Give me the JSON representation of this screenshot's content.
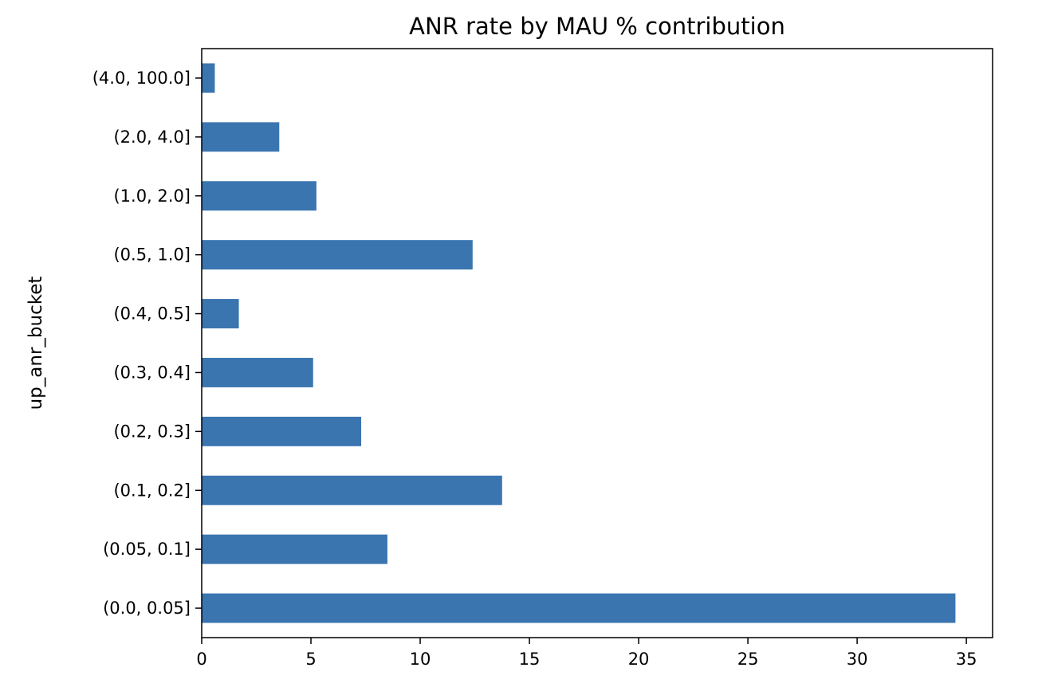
{
  "chart_data": {
    "type": "bar",
    "orientation": "horizontal",
    "title": "ANR rate by MAU % contribution",
    "xlabel": "",
    "ylabel": "up_anr_bucket",
    "categories": [
      "(0.0, 0.05]",
      "(0.05, 0.1]",
      "(0.1, 0.2]",
      "(0.2, 0.3]",
      "(0.3, 0.4]",
      "(0.4, 0.5]",
      "(0.5, 1.0]",
      "(1.0, 2.0]",
      "(2.0, 4.0]",
      "(4.0, 100.0]"
    ],
    "values": [
      34.5,
      8.5,
      13.75,
      7.3,
      5.1,
      1.7,
      12.4,
      5.25,
      3.55,
      0.6
    ],
    "xlim": [
      0,
      36.2
    ],
    "xticks": [
      0,
      5,
      10,
      15,
      20,
      25,
      30,
      35
    ],
    "bar_color": "#3a75b0",
    "grid": false,
    "legend": "none"
  }
}
